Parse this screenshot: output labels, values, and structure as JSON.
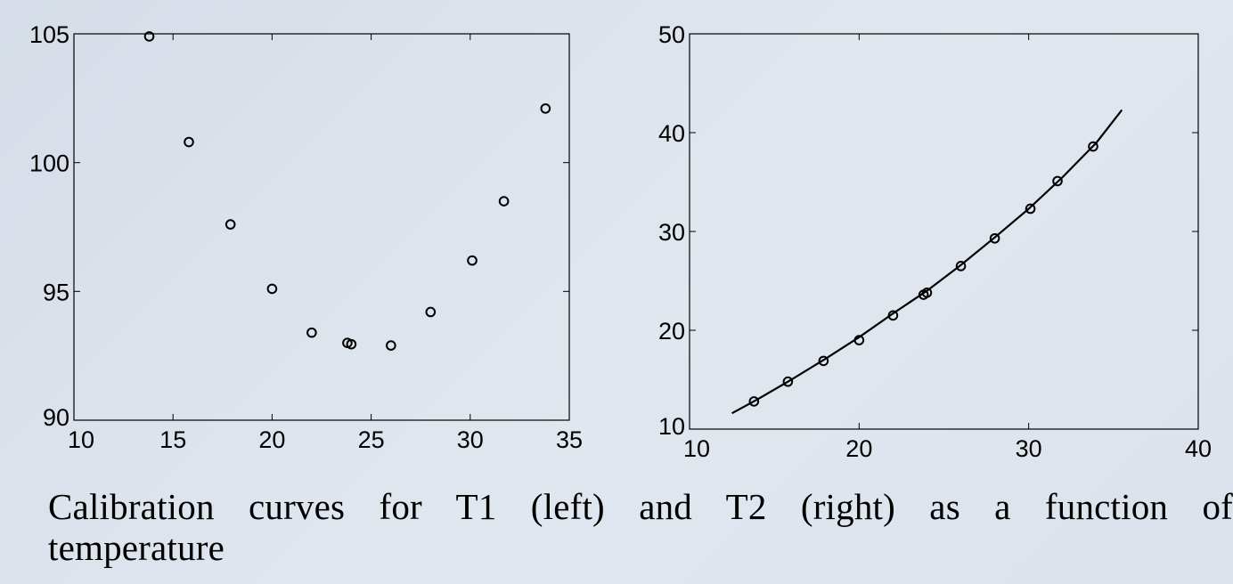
{
  "caption": "Calibration curves for T1 (left) and T2 (right) as a function of temperature",
  "chart_data": [
    {
      "type": "scatter",
      "title": "",
      "xlabel": "",
      "ylabel": "",
      "xlim": [
        10,
        35
      ],
      "ylim": [
        90,
        105
      ],
      "xticks": [
        10,
        15,
        20,
        25,
        30,
        35
      ],
      "yticks": [
        90,
        95,
        100,
        105
      ],
      "grid": false,
      "series": [
        {
          "marker": "circle",
          "color": "#000000",
          "points": [
            [
              13.8,
              104.9
            ],
            [
              15.8,
              100.8
            ],
            [
              17.9,
              97.6
            ],
            [
              20.0,
              95.1
            ],
            [
              22.0,
              93.4
            ],
            [
              23.8,
              93.0
            ],
            [
              24.0,
              92.95
            ],
            [
              26.0,
              92.9
            ],
            [
              28.0,
              94.2
            ],
            [
              30.1,
              96.2
            ],
            [
              31.7,
              98.5
            ],
            [
              33.8,
              102.1
            ]
          ]
        }
      ]
    },
    {
      "type": "scatter",
      "title": "",
      "xlabel": "",
      "ylabel": "",
      "xlim": [
        10,
        40
      ],
      "ylim": [
        10,
        50
      ],
      "xticks": [
        10,
        20,
        30,
        40
      ],
      "yticks": [
        10,
        20,
        30,
        40,
        50
      ],
      "grid": false,
      "series": [
        {
          "marker": "circle",
          "color": "#000000",
          "points": [
            [
              13.8,
              12.8
            ],
            [
              15.8,
              14.8
            ],
            [
              17.9,
              16.9
            ],
            [
              20.0,
              19.0
            ],
            [
              22.0,
              21.5
            ],
            [
              23.8,
              23.6
            ],
            [
              24.0,
              23.8
            ],
            [
              26.0,
              26.5
            ],
            [
              28.0,
              29.3
            ],
            [
              30.1,
              32.3
            ],
            [
              31.7,
              35.1
            ],
            [
              33.8,
              38.6
            ]
          ]
        },
        {
          "line": "solid",
          "color": "#000000",
          "points": [
            [
              12.5,
              11.6
            ],
            [
              14,
              13.0
            ],
            [
              16,
              15.0
            ],
            [
              18,
              17.1
            ],
            [
              20,
              19.3
            ],
            [
              22,
              21.7
            ],
            [
              24,
              24.0
            ],
            [
              26,
              26.6
            ],
            [
              28,
              29.4
            ],
            [
              30,
              32.3
            ],
            [
              32,
              35.5
            ],
            [
              34,
              39.0
            ],
            [
              35.5,
              42.3
            ]
          ]
        }
      ]
    }
  ]
}
